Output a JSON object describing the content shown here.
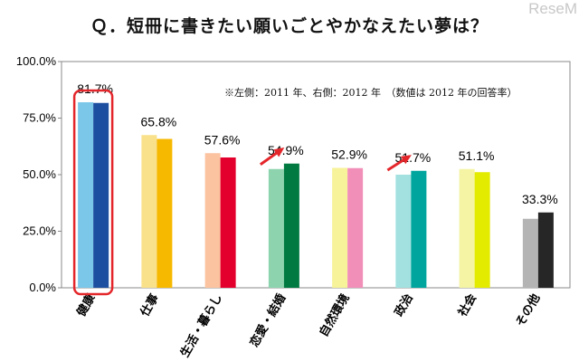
{
  "title": "Ｑ．短冊に書きたい願いごとやかなえたい夢は？",
  "watermark": "ReseM",
  "note": "※左側：2011 年、右側：2012 年　（数値は 2012 年の回答率）",
  "chart_data": {
    "type": "bar",
    "categories": [
      "健康",
      "仕事",
      "生活・暮らし",
      "恋愛・結婚",
      "自然環境",
      "政治",
      "社会",
      "その他"
    ],
    "series": [
      {
        "values": [
          82.0,
          67.5,
          59.5,
          52.5,
          53.0,
          50.0,
          52.5,
          30.5
        ]
      },
      {
        "values": [
          81.7,
          65.8,
          57.6,
          54.9,
          52.9,
          51.7,
          51.1,
          33.3
        ]
      }
    ],
    "data_labels": [
      "81.7%",
      "65.8%",
      "57.6%",
      "54.9%",
      "52.9%",
      "51.7%",
      "51.1%",
      "33.3%"
    ],
    "y_ticks": [
      "0.0%",
      "25.0%",
      "50.0%",
      "75.0%",
      "100.0%"
    ],
    "ylim": [
      0,
      100
    ],
    "colors_2011": [
      "#7ac7ea",
      "#f9e08a",
      "#fcc3a0",
      "#8dd4ae",
      "#f7f39a",
      "#a2e1e0",
      "#f4f4a4",
      "#b4b4b4"
    ],
    "colors_2012": [
      "#1d4fa0",
      "#f7b900",
      "#e3002c",
      "#007a40",
      "#f28fb9",
      "#00a59e",
      "#e3eb00",
      "#262626"
    ],
    "highlight_category": "健康",
    "highlight_color": "#e4262b",
    "trend_arrows": [
      "恋愛・結婚",
      "政治"
    ],
    "grid": false
  }
}
